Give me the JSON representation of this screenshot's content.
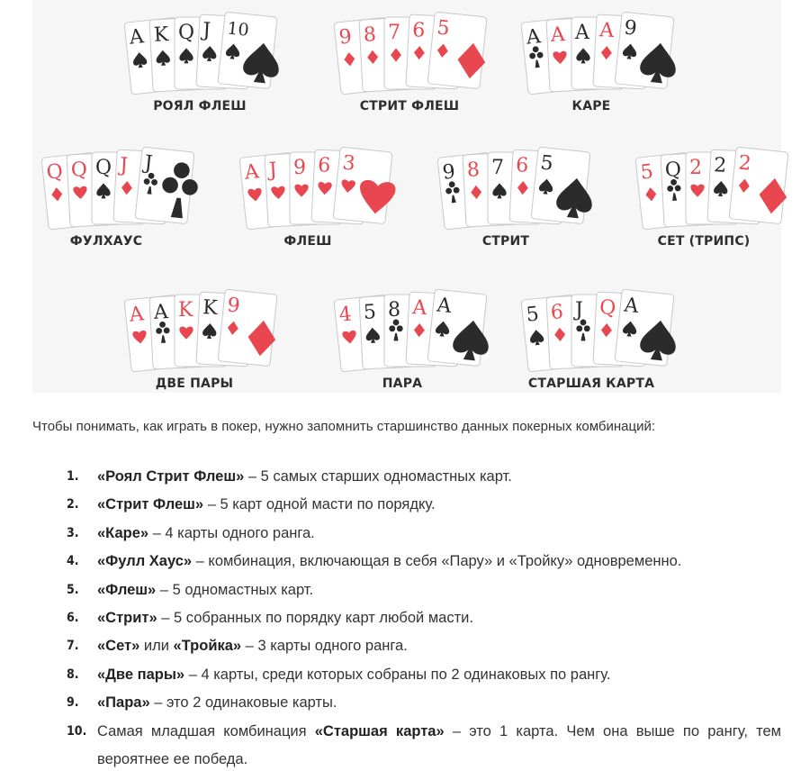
{
  "hands": [
    {
      "label": "РОЯЛ ФЛЕШ",
      "cards": [
        {
          "r": "A",
          "s": "spade"
        },
        {
          "r": "K",
          "s": "spade"
        },
        {
          "r": "Q",
          "s": "spade"
        },
        {
          "r": "J",
          "s": "spade"
        },
        {
          "r": "10",
          "s": "spade"
        }
      ]
    },
    {
      "label": "СТРИТ ФЛЕШ",
      "cards": [
        {
          "r": "9",
          "s": "diamond"
        },
        {
          "r": "8",
          "s": "diamond"
        },
        {
          "r": "7",
          "s": "diamond"
        },
        {
          "r": "6",
          "s": "diamond"
        },
        {
          "r": "5",
          "s": "diamond"
        }
      ]
    },
    {
      "label": "КАРЕ",
      "cards": [
        {
          "r": "A",
          "s": "club"
        },
        {
          "r": "A",
          "s": "heart"
        },
        {
          "r": "A",
          "s": "spade"
        },
        {
          "r": "A",
          "s": "diamond"
        },
        {
          "r": "9",
          "s": "spade"
        }
      ]
    },
    {
      "label": "ФУЛХАУС",
      "cards": [
        {
          "r": "Q",
          "s": "diamond"
        },
        {
          "r": "Q",
          "s": "heart"
        },
        {
          "r": "Q",
          "s": "spade"
        },
        {
          "r": "J",
          "s": "diamond"
        },
        {
          "r": "J",
          "s": "club"
        }
      ]
    },
    {
      "label": "ФЛЕШ",
      "cards": [
        {
          "r": "A",
          "s": "heart"
        },
        {
          "r": "J",
          "s": "heart"
        },
        {
          "r": "9",
          "s": "heart"
        },
        {
          "r": "6",
          "s": "heart"
        },
        {
          "r": "3",
          "s": "heart"
        }
      ]
    },
    {
      "label": "СТРИТ",
      "cards": [
        {
          "r": "9",
          "s": "club"
        },
        {
          "r": "8",
          "s": "diamond"
        },
        {
          "r": "7",
          "s": "spade"
        },
        {
          "r": "6",
          "s": "diamond"
        },
        {
          "r": "5",
          "s": "spade"
        }
      ]
    },
    {
      "label": "СЕТ (ТРИПС)",
      "cards": [
        {
          "r": "5",
          "s": "diamond"
        },
        {
          "r": "Q",
          "s": "club"
        },
        {
          "r": "2",
          "s": "heart"
        },
        {
          "r": "2",
          "s": "spade"
        },
        {
          "r": "2",
          "s": "diamond"
        }
      ]
    },
    {
      "label": "ДВЕ ПАРЫ",
      "cards": [
        {
          "r": "A",
          "s": "heart"
        },
        {
          "r": "A",
          "s": "club"
        },
        {
          "r": "K",
          "s": "heart"
        },
        {
          "r": "K",
          "s": "spade"
        },
        {
          "r": "9",
          "s": "diamond"
        }
      ]
    },
    {
      "label": "ПАРА",
      "cards": [
        {
          "r": "4",
          "s": "heart"
        },
        {
          "r": "5",
          "s": "spade"
        },
        {
          "r": "8",
          "s": "club"
        },
        {
          "r": "A",
          "s": "diamond"
        },
        {
          "r": "A",
          "s": "spade"
        }
      ]
    },
    {
      "label": "СТАРШАЯ КАРТА",
      "cards": [
        {
          "r": "5",
          "s": "spade"
        },
        {
          "r": "6",
          "s": "diamond"
        },
        {
          "r": "J",
          "s": "club"
        },
        {
          "r": "Q",
          "s": "diamond"
        },
        {
          "r": "A",
          "s": "spade"
        }
      ]
    }
  ],
  "colors": {
    "red": "#e8474f",
    "black": "#2b2b2b",
    "card_border": "#c8c8c8",
    "panel": "#f6f6f6"
  },
  "intro": "Чтобы понимать, как играть в покер, нужно запомнить старшинство данных покерных комбинаций:",
  "rules": [
    {
      "num": "1.",
      "name": "«Роял Стрит Флеш»",
      "text": " – 5 самых старших одномастных карт."
    },
    {
      "num": "2.",
      "name": "«Стрит Флеш»",
      "text": " – 5 карт одной масти по порядку."
    },
    {
      "num": "3.",
      "name": "«Каре»",
      "text": " – 4 карты одного ранга."
    },
    {
      "num": "4.",
      "name": "«Фулл Хаус»",
      "text": " – комбинация, включающая в себя «Пару» и «Тройку» одновременно."
    },
    {
      "num": "5.",
      "name": "«Флеш»",
      "text": " – 5 одномастных карт."
    },
    {
      "num": "6.",
      "name": "«Стрит»",
      "text": " – 5 собранных по порядку карт любой масти."
    },
    {
      "num": "7.",
      "name": "«Сет»",
      "mid": " или ",
      "name2": "«Тройка»",
      "text": " – 3 карты одного ранга."
    },
    {
      "num": "8.",
      "name": "«Две пары»",
      "text": " – 4 карты, среди которых собраны по 2 одинаковых по рангу."
    },
    {
      "num": "9.",
      "name": "«Пара»",
      "text": " – это 2 одинаковые карты."
    },
    {
      "num": "10.",
      "pre": "Самая младшая комбинация ",
      "name": "«Старшая карта»",
      "text": " – это 1 карта. Чем она выше по рангу, тем вероятнее ее победа."
    }
  ]
}
